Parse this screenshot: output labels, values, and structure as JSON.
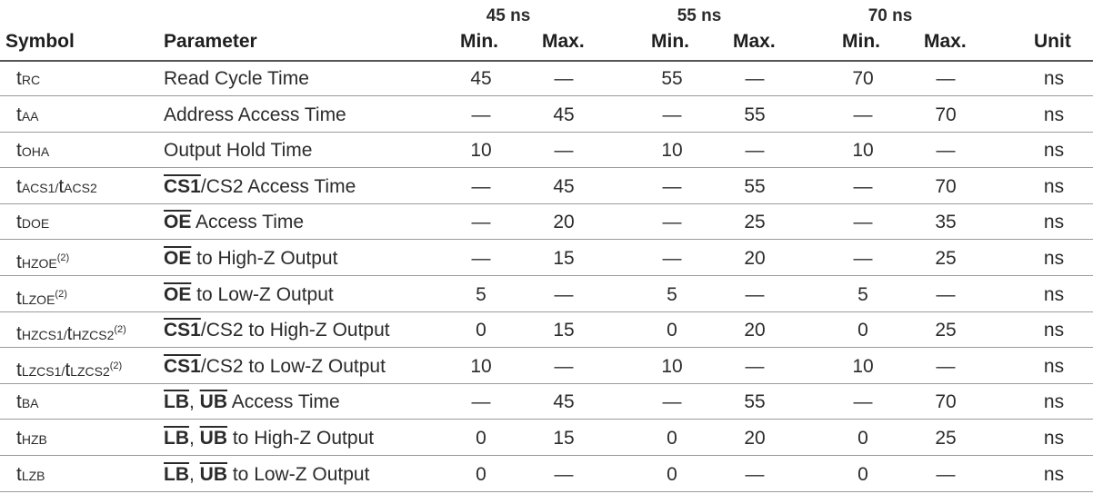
{
  "header": {
    "groups": [
      "45 ns",
      "55 ns",
      "70 ns"
    ],
    "symbol": "Symbol",
    "parameter": "Parameter",
    "min": "Min.",
    "max": "Max.",
    "unit": "Unit"
  },
  "rows": [
    {
      "sym_t": "t",
      "sym_sub": "RC",
      "sym_sup": "",
      "parts": [
        {
          "text": "Read Cycle Time",
          "over": false
        }
      ],
      "v": [
        "45",
        "—",
        "55",
        "—",
        "70",
        "—"
      ],
      "unit": "ns"
    },
    {
      "sym_t": "t",
      "sym_sub": "AA",
      "sym_sup": "",
      "parts": [
        {
          "text": "Address Access Time",
          "over": false
        }
      ],
      "v": [
        "—",
        "45",
        "—",
        "55",
        "—",
        "70"
      ],
      "unit": "ns"
    },
    {
      "sym_t": "t",
      "sym_sub": "OHA",
      "sym_sup": "",
      "parts": [
        {
          "text": "Output Hold Time",
          "over": false
        }
      ],
      "v": [
        "10",
        "—",
        "10",
        "—",
        "10",
        "—"
      ],
      "unit": "ns"
    },
    {
      "sym_t": "t",
      "sym_sub": "ACS1/",
      "sym_t2": "t",
      "sym_sub2": "ACS2",
      "sym_sup": "",
      "parts": [
        {
          "text": "CS1",
          "over": true
        },
        {
          "text": "/CS2 Access Time",
          "over": false
        }
      ],
      "v": [
        "—",
        "45",
        "—",
        "55",
        "—",
        "70"
      ],
      "unit": "ns"
    },
    {
      "sym_t": "t",
      "sym_sub": "DOE",
      "sym_sup": "",
      "parts": [
        {
          "text": "OE",
          "over": true
        },
        {
          "text": " Access Time",
          "over": false
        }
      ],
      "v": [
        "—",
        "20",
        "—",
        "25",
        "—",
        "35"
      ],
      "unit": "ns"
    },
    {
      "sym_t": "t",
      "sym_sub": "HZOE",
      "sym_sup": "(2)",
      "parts": [
        {
          "text": "OE",
          "over": true
        },
        {
          "text": " to High-Z Output",
          "over": false
        }
      ],
      "v": [
        "—",
        "15",
        "—",
        "20",
        "—",
        "25"
      ],
      "unit": "ns"
    },
    {
      "sym_t": "t",
      "sym_sub": "LZOE",
      "sym_sup": "(2)",
      "parts": [
        {
          "text": "OE",
          "over": true
        },
        {
          "text": " to Low-Z Output",
          "over": false
        }
      ],
      "v": [
        "5",
        "—",
        "5",
        "—",
        "5",
        "—"
      ],
      "unit": "ns"
    },
    {
      "sym_t": "t",
      "sym_sub": "HZCS1/",
      "sym_t2": "t",
      "sym_sub2": "HZCS2",
      "sym_sup": "(2)",
      "parts": [
        {
          "text": "CS1",
          "over": true
        },
        {
          "text": "/CS2 to High-Z Output",
          "over": false
        }
      ],
      "v": [
        "0",
        "15",
        "0",
        "20",
        "0",
        "25"
      ],
      "unit": "ns"
    },
    {
      "sym_t": "t",
      "sym_sub": "LZCS1/",
      "sym_t2": "t",
      "sym_sub2": "LZCS2",
      "sym_sup": "(2)",
      "parts": [
        {
          "text": "CS1",
          "over": true
        },
        {
          "text": "/CS2 to Low-Z Output",
          "over": false
        }
      ],
      "v": [
        "10",
        "—",
        "10",
        "—",
        "10",
        "—"
      ],
      "unit": "ns"
    },
    {
      "sym_t": "t",
      "sym_sub": "BA",
      "sym_sup": "",
      "parts": [
        {
          "text": "LB",
          "over": true
        },
        {
          "text": ", ",
          "over": false
        },
        {
          "text": "UB",
          "over": true
        },
        {
          "text": " Access Time",
          "over": false
        }
      ],
      "v": [
        "—",
        "45",
        "—",
        "55",
        "—",
        "70"
      ],
      "unit": "ns"
    },
    {
      "sym_t": "t",
      "sym_sub": "HZB",
      "sym_sup": "",
      "parts": [
        {
          "text": "LB",
          "over": true
        },
        {
          "text": ", ",
          "over": false
        },
        {
          "text": "UB",
          "over": true
        },
        {
          "text": " to High-Z Output",
          "over": false
        }
      ],
      "v": [
        "0",
        "15",
        "0",
        "20",
        "0",
        "25"
      ],
      "unit": "ns"
    },
    {
      "sym_t": "t",
      "sym_sub": "LZB",
      "sym_sup": "",
      "parts": [
        {
          "text": "LB",
          "over": true
        },
        {
          "text": ", ",
          "over": false
        },
        {
          "text": "UB",
          "over": true
        },
        {
          "text": " to Low-Z Output",
          "over": false
        }
      ],
      "v": [
        "0",
        "—",
        "0",
        "—",
        "0",
        "—"
      ],
      "unit": "ns"
    }
  ]
}
